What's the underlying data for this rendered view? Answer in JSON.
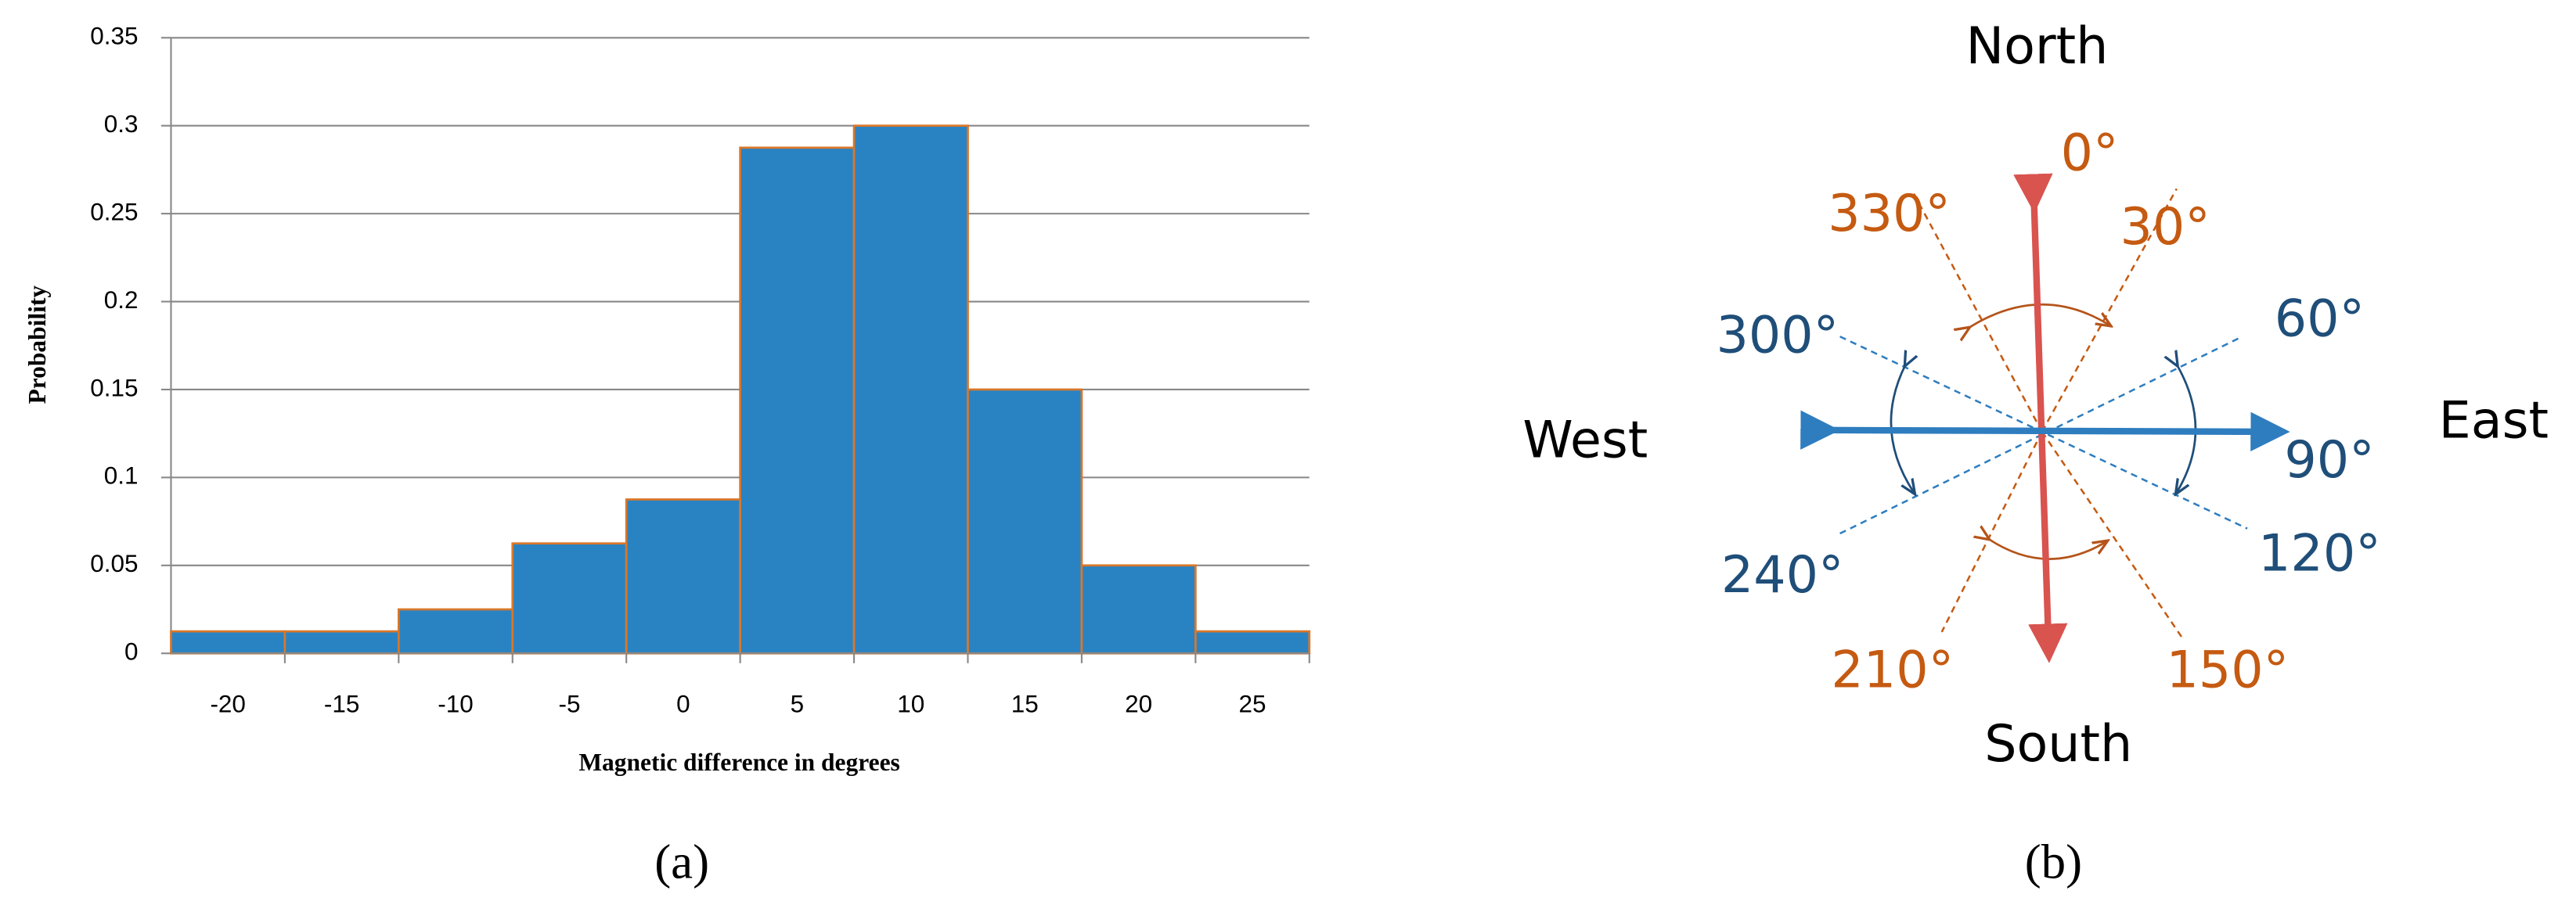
{
  "chart_data": {
    "type": "bar",
    "y_label": "Probability",
    "x_label": "Magnetic difference in degrees",
    "caption": "(a)",
    "categories": [
      "-20",
      "-15",
      "-10",
      "-5",
      "0",
      "5",
      "10",
      "15",
      "20",
      "25"
    ],
    "values": [
      0.0125,
      0.0125,
      0.025,
      0.0625,
      0.0875,
      0.2875,
      0.3,
      0.15,
      0.05,
      0.0125
    ],
    "color": "#2983c3",
    "edge_color": "#d9772a",
    "ylim": [
      0,
      0.35
    ],
    "yticks": [
      0,
      0.05,
      0.1,
      0.15,
      0.2,
      0.25,
      0.3,
      0.35
    ],
    "grid": true
  },
  "diagram": {
    "caption": "(b)",
    "north": "North",
    "south": "South",
    "east": "East",
    "west": "West",
    "angles": [
      "0°",
      "30°",
      "60°",
      "90°",
      "120°",
      "150°",
      "210°",
      "240°",
      "300°",
      "330°"
    ]
  }
}
